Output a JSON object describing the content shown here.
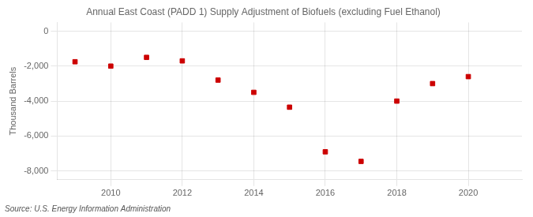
{
  "chart_data": {
    "type": "scatter",
    "title": "Annual East Coast (PADD 1) Supply Adjustment of Biofuels (excluding Fuel Ethanol)",
    "ylabel": "Thousand Barrels",
    "annotations": [
      "Source: U.S. Energy Information Administration"
    ],
    "x": [
      2009,
      2010,
      2011,
      2012,
      2013,
      2014,
      2015,
      2016,
      2017,
      2018,
      2019,
      2020
    ],
    "values": [
      -1750,
      -2000,
      -1500,
      -1700,
      -2800,
      -3500,
      -4350,
      -6900,
      -7450,
      -4000,
      -3000,
      -2600
    ],
    "color": "#cc0000",
    "marker": "square",
    "xlim": [
      2008.5,
      2021.5
    ],
    "xticks": [
      2010,
      2012,
      2014,
      2016,
      2018,
      2020
    ],
    "ylim": [
      -8500,
      500
    ],
    "yticks": [
      0,
      {
        "value": -2000,
        "label": "-2,000"
      },
      {
        "value": -4000,
        "label": "-4,000"
      },
      {
        "value": -6000,
        "label": "-6,000"
      },
      {
        "value": -8000,
        "label": "-8,000"
      }
    ],
    "grid": true
  }
}
